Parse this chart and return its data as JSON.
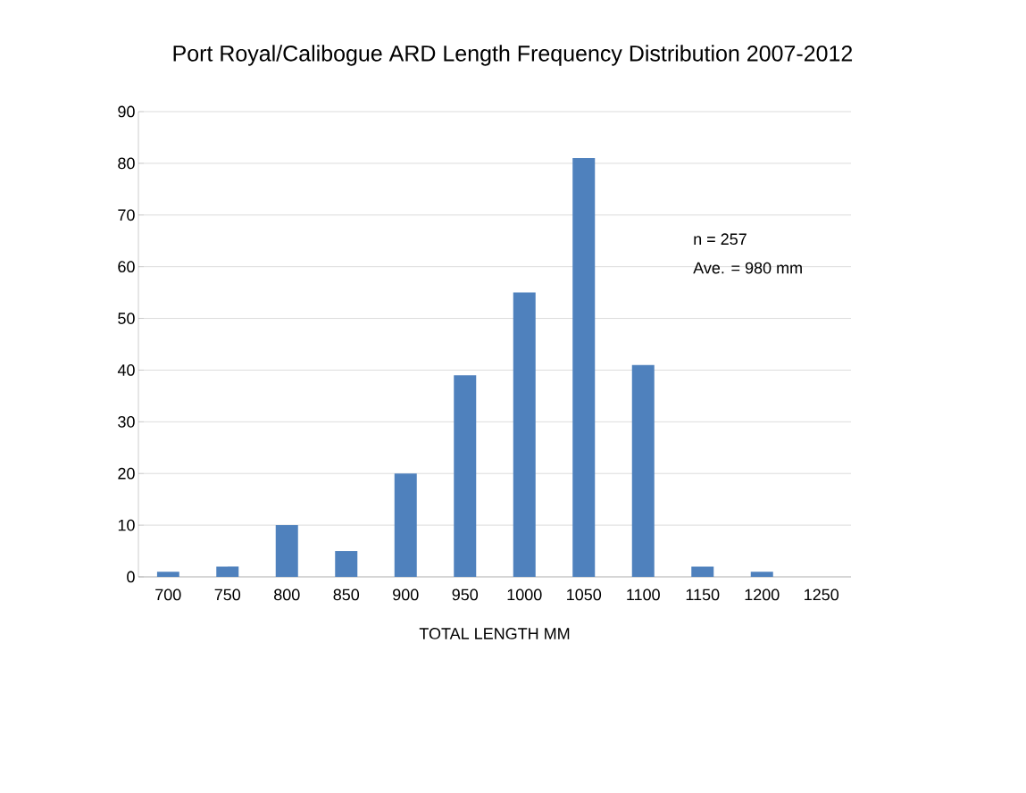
{
  "chart_data": {
    "type": "bar",
    "title": "Port Royal/Calibogue ARD Length Frequency Distribution  2007-2012",
    "xlabel": "TOTAL LENGTH MM",
    "categories": [
      "700",
      "750",
      "800",
      "850",
      "900",
      "950",
      "1000",
      "1050",
      "1100",
      "1150",
      "1200",
      "1250"
    ],
    "values": [
      1,
      2,
      10,
      5,
      20,
      39,
      55,
      81,
      41,
      2,
      1,
      0
    ],
    "color": "#4f81bd",
    "ylim": [
      0,
      90
    ],
    "yticks": [
      0,
      10,
      20,
      30,
      40,
      50,
      60,
      70,
      80,
      90
    ],
    "grid": "y",
    "annotations": [
      "n = 257",
      "Ave. = 980 mm"
    ]
  }
}
